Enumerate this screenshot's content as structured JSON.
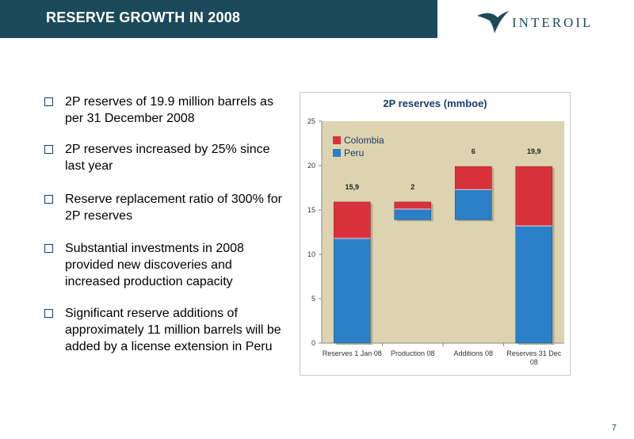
{
  "header": {
    "title": "RESERVE GROWTH IN 2008"
  },
  "logo": {
    "text": "INTEROIL"
  },
  "bullets": [
    {
      "text": "2P reserves of 19.9 million barrels as per 31 December 2008"
    },
    {
      "text": "2P reserves increased by 25% since last year"
    },
    {
      "text": "Reserve replacement ratio of 300% for 2P reserves"
    },
    {
      "text": "Substantial investments in 2008 provided new discoveries and increased production capacity"
    },
    {
      "text": "Significant reserve additions of approximately 11 million barrels will be added by a license extension in Peru"
    }
  ],
  "page_number": "7",
  "colors": {
    "header": "#1c4a5a",
    "colombia": "#d9323c",
    "peru": "#2a7fc8",
    "plot_bg": "#ddd3b0"
  },
  "chart_data": {
    "type": "bar",
    "subtype": "waterfall-stacked",
    "title": "2P reserves (mmboe)",
    "xlabel": "",
    "ylabel": "",
    "ylim": [
      0,
      25
    ],
    "yticks": [
      0,
      5,
      10,
      15,
      20,
      25
    ],
    "grid": false,
    "legend_position": "top-left",
    "categories": [
      "Reserves 1 Jan 08",
      "Production 08",
      "Additions 08",
      "Reserves 31 Dec 08"
    ],
    "series": [
      {
        "name": "Peru",
        "color": "#2a7fc8",
        "base": [
          0,
          13.9,
          13.9,
          0
        ],
        "values": [
          11.8,
          1.2,
          3.4,
          13.2
        ]
      },
      {
        "name": "Colombia",
        "color": "#d9323c",
        "values": [
          4.1,
          0.8,
          2.6,
          6.7
        ]
      }
    ],
    "data_labels": [
      "15,9",
      "2",
      "6",
      "19,9"
    ]
  }
}
